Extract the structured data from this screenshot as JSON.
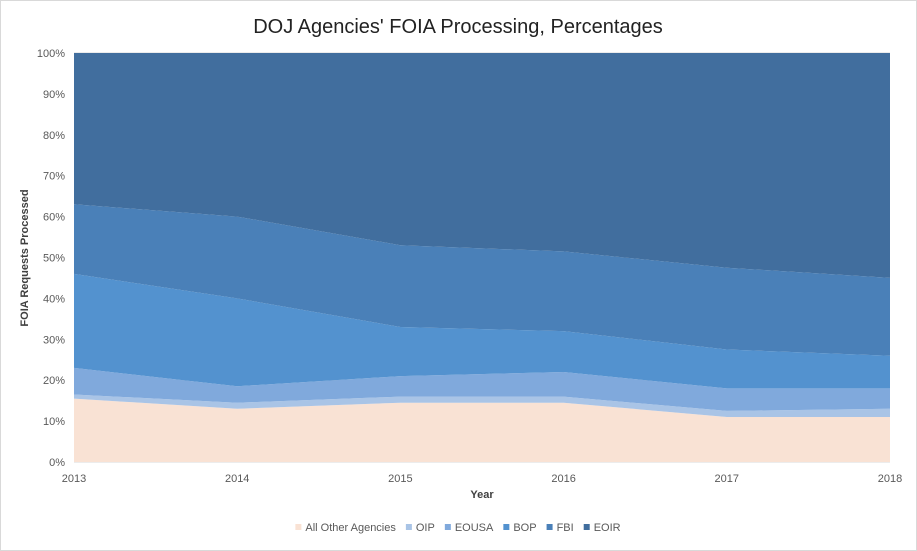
{
  "chart_data": {
    "type": "area",
    "stacked": "percent",
    "title": "DOJ Agencies' FOIA Processing, Percentages",
    "xlabel": "Year",
    "ylabel": "FOIA Requests Processed",
    "x": [
      "2013",
      "2014",
      "2015",
      "2016",
      "2017",
      "2018"
    ],
    "y_ticks": [
      "0%",
      "10%",
      "20%",
      "30%",
      "40%",
      "50%",
      "60%",
      "70%",
      "80%",
      "90%",
      "100%"
    ],
    "ylim": [
      0,
      100
    ],
    "legend_position": "bottom",
    "series": [
      {
        "name": "All Other Agencies",
        "color": "#f9e2d4",
        "values": [
          15.5,
          13.0,
          14.5,
          14.5,
          11.0,
          11.0
        ]
      },
      {
        "name": "OIP",
        "color": "#a9c4e6",
        "values": [
          1.0,
          1.5,
          1.5,
          1.5,
          1.5,
          2.0
        ]
      },
      {
        "name": "EOUSA",
        "color": "#80a9dc",
        "values": [
          6.5,
          4.0,
          5.0,
          6.0,
          5.5,
          5.0
        ]
      },
      {
        "name": "BOP",
        "color": "#5392cf",
        "values": [
          23.0,
          21.5,
          12.0,
          10.0,
          9.5,
          8.0
        ]
      },
      {
        "name": "FBI",
        "color": "#4a80b8",
        "values": [
          17.0,
          20.0,
          20.0,
          19.5,
          20.0,
          19.0
        ]
      },
      {
        "name": "EOIR",
        "color": "#416e9e",
        "values": [
          37.0,
          40.0,
          47.0,
          48.5,
          52.5,
          55.0
        ]
      }
    ]
  }
}
